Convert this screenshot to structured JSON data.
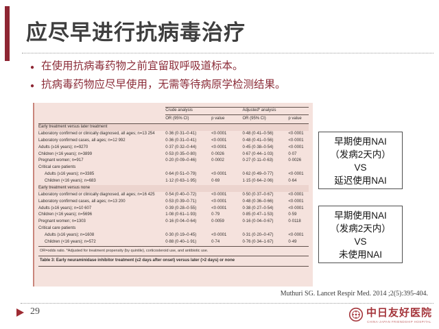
{
  "slide": {
    "title": "应尽早进行抗病毒治疗",
    "bullets": [
      "在使用抗病毒药物之前宜留取呼吸道标本。",
      "抗病毒药物应尽早使用，无需等待病原学检测结果。"
    ],
    "bullet_glyph": "●",
    "page_number": "29",
    "citation": "Muthuri SG.  Lancet Respir Med. 2014 ;2(5):395-404.",
    "logo": {
      "hospital_cn": "中日友好医院",
      "hospital_en": "CHINA-JAPAN FRIENDSHIP HOSPITAL"
    }
  },
  "colors": {
    "accent_red": "#8e2633",
    "bullet_text": "#8b2c38",
    "table_bg": "#f5e2dd",
    "table_section_bg": "#ecd4ce",
    "table_rule": "#5f4f4a",
    "logo_red": "#a4343a"
  },
  "table": {
    "group_headers": [
      "Crude analysis",
      "Adjusted* analysis"
    ],
    "col_headers": [
      "OR (95% CI)",
      "p value",
      "OR (95% CI)",
      "p value"
    ],
    "sections": [
      {
        "header": "Early treatment versus later treatment",
        "rows": [
          {
            "label": "Laboratory confirmed or clinically diagnosed, all ages; n=13 254",
            "indent": false,
            "values": [
              "0·36 (0·31–0·41)",
              "<0·0001",
              "0·48 (0·41–0·56)",
              "<0·0001"
            ]
          },
          {
            "label": "Laboratory confirmed cases, all ages; n=12 992",
            "indent": false,
            "values": [
              "0·36 (0·31–0·41)",
              "<0·0001",
              "0·48 (0·41–0·56)",
              "<0·0001"
            ]
          },
          {
            "label": "Adults (≥16 years); n=9270",
            "indent": false,
            "values": [
              "0·37 (0·32–0·44)",
              "<0·0001",
              "0·45 (0·38–0·54)",
              "<0·0001"
            ]
          },
          {
            "label": "Children (<16 years); n=3899",
            "indent": false,
            "values": [
              "0·53 (0·35–0·80)",
              "0·0026",
              "0·67 (0·44–1·03)",
              "0·07"
            ]
          },
          {
            "label": "Pregnant women; n=917",
            "indent": false,
            "values": [
              "0·20 (0·09–0·46)",
              "0·0002",
              "0·27 (0·11–0·63)",
              "0·0026"
            ]
          },
          {
            "label": "Critical care patients",
            "indent": false,
            "values": [
              "",
              "",
              "",
              ""
            ]
          },
          {
            "label": "Adults (≥16 years); n=3385",
            "indent": true,
            "values": [
              "0·64 (0·51–0·79)",
              "<0·0001",
              "0·62 (0·49–0·77)",
              "<0·0001"
            ]
          },
          {
            "label": "Children (<16 years); n=683",
            "indent": true,
            "values": [
              "1·12 (0·63–1·95)",
              "0·69",
              "1·15 (0·64–2·06)",
              "0·64"
            ]
          }
        ]
      },
      {
        "header": "Early treatment versus none",
        "rows": [
          {
            "label": "Laboratory confirmed or clinically diagnosed, all ages; n=16 425",
            "indent": false,
            "values": [
              "0·54 (0·40–0·72)",
              "<0·0001",
              "0·50 (0·37–0·67)",
              "<0·0001"
            ]
          },
          {
            "label": "Laboratory confirmed cases, all ages; n=13 200",
            "indent": false,
            "values": [
              "0·53 (0·39–0·71)",
              "<0·0001",
              "0·48 (0·36–0·66)",
              "<0·0001"
            ]
          },
          {
            "label": "Adults (≥16 years); n=10 607",
            "indent": false,
            "values": [
              "0·39 (0·28–0·55)",
              "<0·0001",
              "0·38 (0·27–0·54)",
              "<0·0001"
            ]
          },
          {
            "label": "Children (<16 years); n=5696",
            "indent": false,
            "values": [
              "1·08 (0·61–1·93)",
              "0·79",
              "0·85 (0·47–1·53)",
              "0·59"
            ]
          },
          {
            "label": "Pregnant women; n=1303",
            "indent": false,
            "values": [
              "0·16 (0·04–0·64)",
              "0·0059",
              "0·16 (0·04–0·67)",
              "0·0118"
            ]
          },
          {
            "label": "Critical care patients",
            "indent": false,
            "values": [
              "",
              "",
              "",
              ""
            ]
          },
          {
            "label": "Adults (≥16 years); n=1608",
            "indent": true,
            "values": [
              "0·30 (0·19–0·45)",
              "<0·0001",
              "0·31 (0·20–0·47)",
              "<0·0001"
            ]
          },
          {
            "label": "Children (<16 years); n=572",
            "indent": true,
            "values": [
              "0·88 (0·40–1·91)",
              "0·74",
              "0·76 (0·34–1·67)",
              "0·49"
            ]
          }
        ]
      }
    ],
    "footnote": "OR=odds ratio. *Adjusted for treatment propensity (by quintile), corticosteroid use, and antibiotic use.",
    "caption": "Table 3: Early neuraminidase inhibitor treatment (≤2 days after onset) versus later (>2 days) or none"
  },
  "side_boxes": [
    {
      "lines": [
        "早期使用NAI",
        "（发病2天内）",
        "VS",
        "延迟使用NAI"
      ]
    },
    {
      "lines": [
        "早期使用NAI",
        "（发病2天内）",
        "VS",
        "未使用NAI"
      ]
    }
  ]
}
